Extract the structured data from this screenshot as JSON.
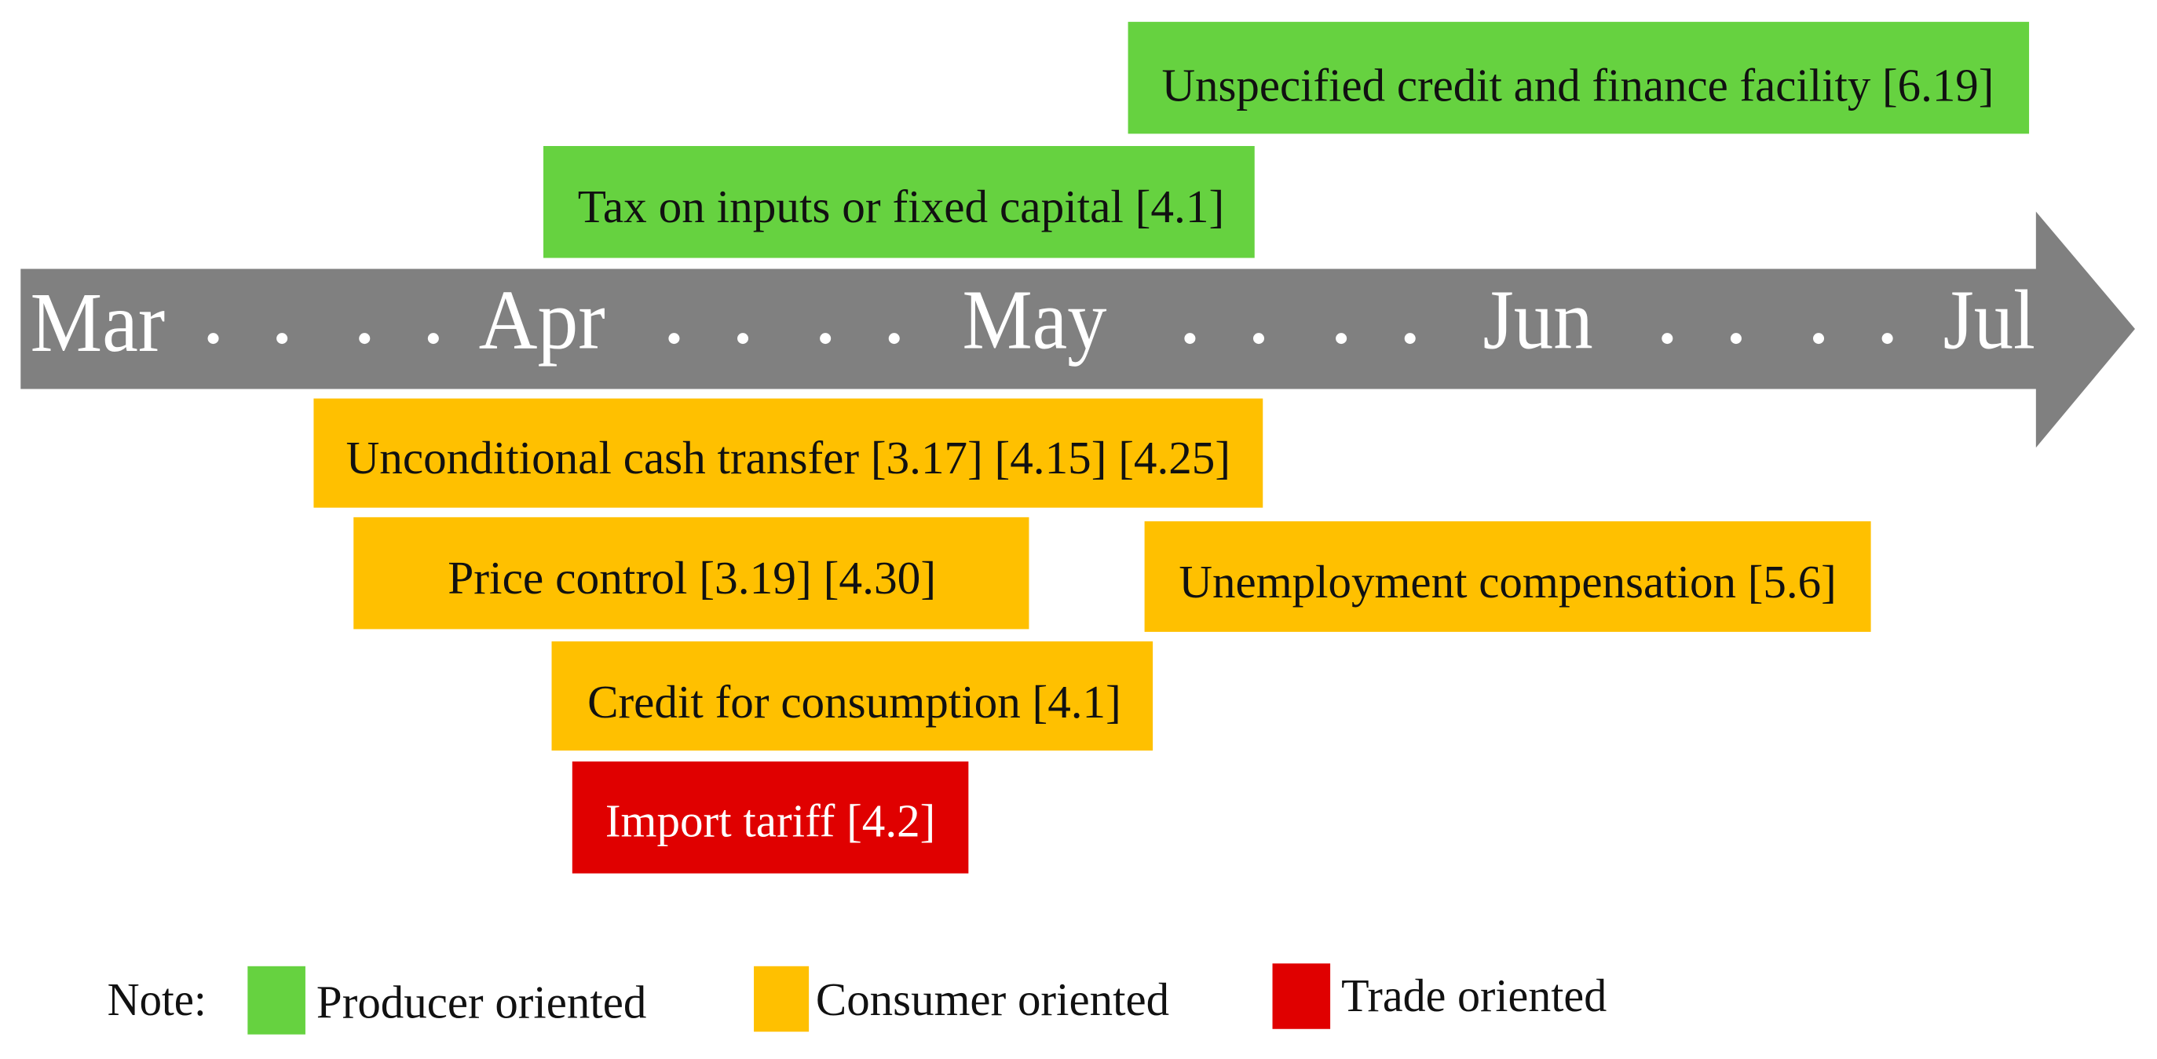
{
  "timeline": {
    "months": [
      "Mar",
      "Apr",
      "May",
      "Jun",
      "Jul"
    ]
  },
  "events": [
    {
      "label": "Unspecified credit and finance facility [6.19]"
    },
    {
      "label": "Tax on inputs or fixed capital [4.1]"
    },
    {
      "label": "Unconditional cash transfer [3.17] [4.15] [4.25]"
    },
    {
      "label": "Price control [3.19] [4.30]"
    },
    {
      "label": "Unemployment compensation [5.6]"
    },
    {
      "label": "Credit for consumption [4.1]"
    },
    {
      "label": "Import tariff [4.2]"
    }
  ],
  "legend": {
    "note": "Note:",
    "items": [
      "Producer oriented",
      "Consumer oriented",
      "Trade oriented"
    ]
  }
}
